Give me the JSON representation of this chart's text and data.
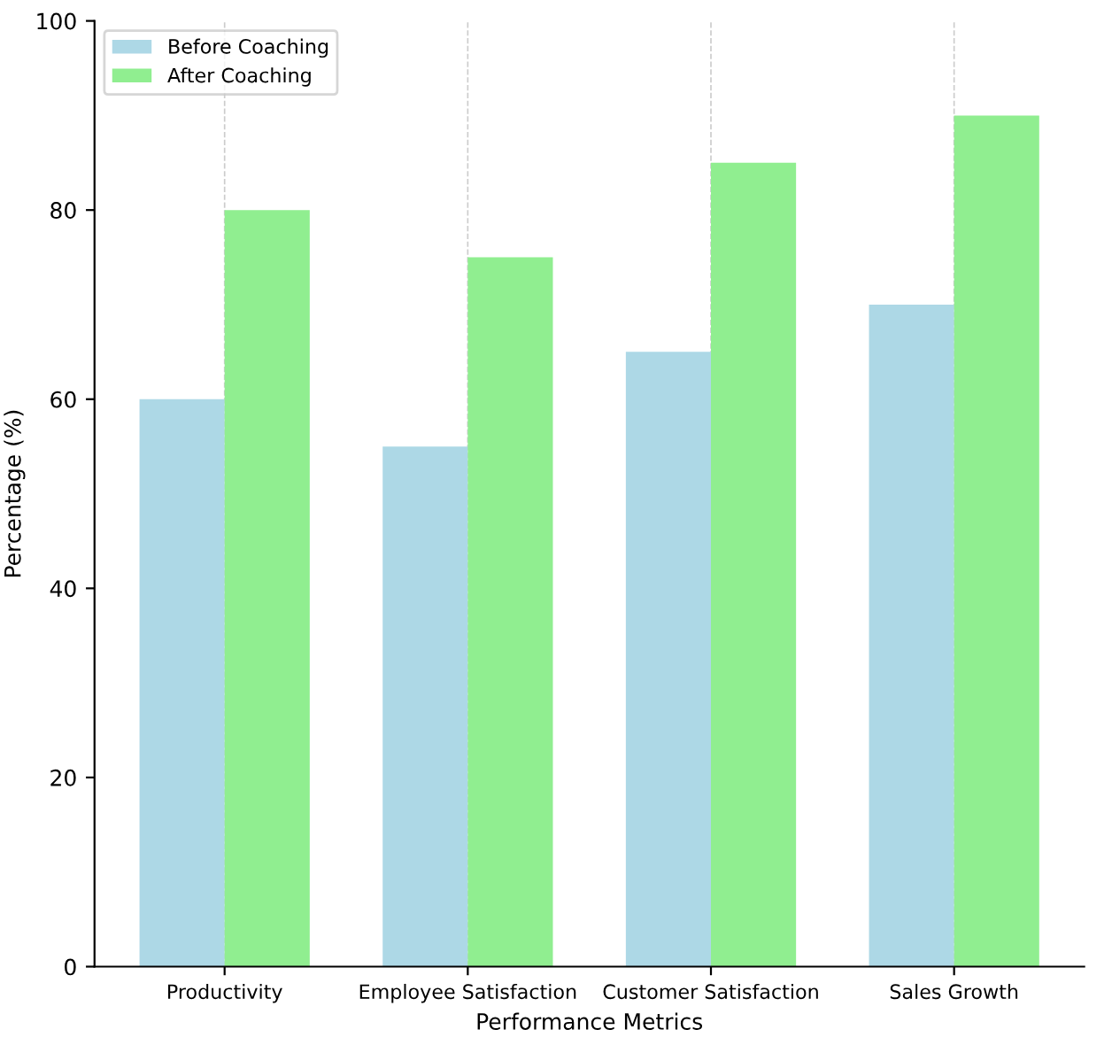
{
  "chart_data": {
    "type": "bar",
    "xlabel": "Performance Metrics",
    "ylabel": "Percentage (%)",
    "categories": [
      "Productivity",
      "Employee Satisfaction",
      "Customer Satisfaction",
      "Sales Growth"
    ],
    "series": [
      {
        "name": "Before Coaching",
        "color": "#add8e6",
        "values": [
          60,
          55,
          65,
          70
        ]
      },
      {
        "name": "After Coaching",
        "color": "#90ee90",
        "values": [
          80,
          75,
          85,
          90
        ]
      }
    ],
    "ylim": [
      0,
      100
    ],
    "yticks": [
      0,
      20,
      40,
      60,
      80,
      100
    ],
    "grid": "x",
    "legend": "top left"
  }
}
